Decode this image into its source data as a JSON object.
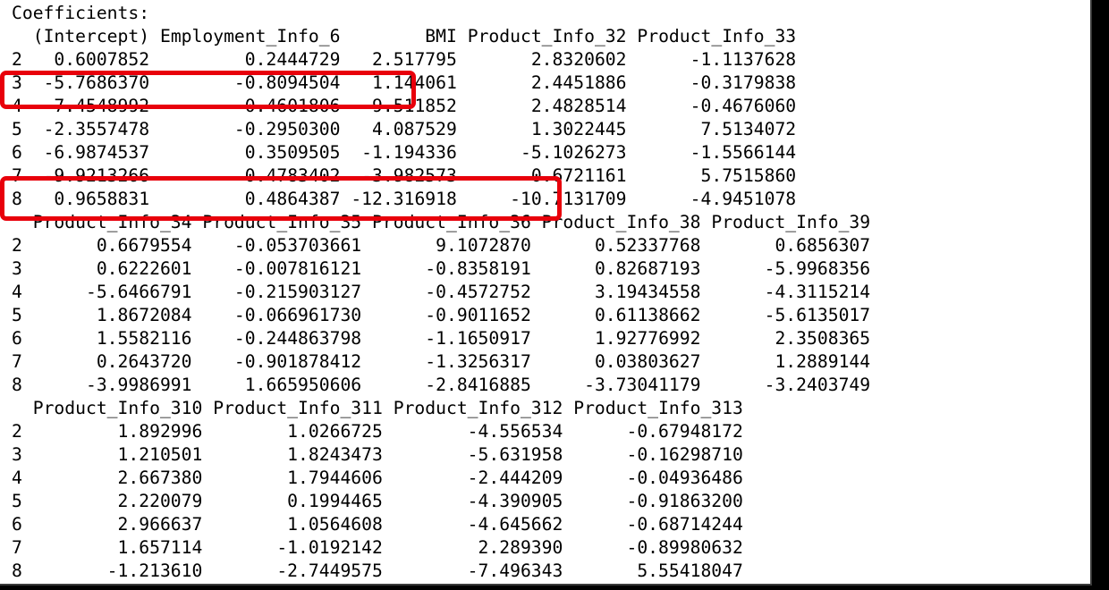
{
  "heading": "Coefficients:",
  "blocks": [
    {
      "header": [
        "(Intercept)",
        "Employment_Info_6",
        "BMI",
        "Product_Info_32",
        "Product_Info_33"
      ],
      "rows": [
        [
          "2",
          "0.6007852",
          "0.2444729",
          "2.517795",
          "2.8320602",
          "-1.1137628"
        ],
        [
          "3",
          "-5.7686370",
          "-0.8094504",
          "1.144061",
          "2.4451886",
          "-0.3179838"
        ],
        [
          "4",
          "-7.4548992",
          "-0.4601806",
          "-9.511852",
          "2.4828514",
          "-0.4676060"
        ],
        [
          "5",
          "-2.3557478",
          "-0.2950300",
          "4.087529",
          "1.3022445",
          "7.5134072"
        ],
        [
          "6",
          "-6.9874537",
          "0.3509505",
          "-1.194336",
          "-5.1026273",
          "-1.5566144"
        ],
        [
          "7",
          "-9.9213266",
          "0.4783402",
          "-3.982573",
          "0.6721161",
          "5.7515860"
        ],
        [
          "8",
          "0.9658831",
          "0.4864387",
          "-12.316918",
          "-10.7131709",
          "-4.9451078"
        ]
      ]
    },
    {
      "header": [
        "Product_Info_34",
        "Product_Info_35",
        "Product_Info_36",
        "Product_Info_38",
        "Product_Info_39"
      ],
      "rows": [
        [
          "2",
          "0.6679554",
          "-0.053703661",
          "9.1072870",
          "0.52337768",
          "0.6856307"
        ],
        [
          "3",
          "0.6222601",
          "-0.007816121",
          "-0.8358191",
          "0.82687193",
          "-5.9968356"
        ],
        [
          "4",
          "-5.6466791",
          "-0.215903127",
          "-0.4572752",
          "3.19434558",
          "-4.3115214"
        ],
        [
          "5",
          "1.8672084",
          "-0.066961730",
          "-0.9011652",
          "0.61138662",
          "-5.6135017"
        ],
        [
          "6",
          "1.5582116",
          "-0.244863798",
          "-1.1650917",
          "1.92776992",
          "2.3508365"
        ],
        [
          "7",
          "0.2643720",
          "-0.901878412",
          "-1.3256317",
          "0.03803627",
          "1.2889144"
        ],
        [
          "8",
          "-3.9986991",
          "1.665950606",
          "-2.8416885",
          "-3.73041179",
          "-3.2403749"
        ]
      ]
    },
    {
      "header": [
        "Product_Info_310",
        "Product_Info_311",
        "Product_Info_312",
        "Product_Info_313"
      ],
      "rows": [
        [
          "2",
          "1.892996",
          "1.0266725",
          "-4.556534",
          "-0.67948172"
        ],
        [
          "3",
          "1.210501",
          "1.8243473",
          "-5.631958",
          "-0.16298710"
        ],
        [
          "4",
          "2.667380",
          "1.7944606",
          "-2.444209",
          "-0.04936486"
        ],
        [
          "5",
          "2.220079",
          "0.1994465",
          "-4.390905",
          "-0.91863200"
        ],
        [
          "6",
          "2.966637",
          "1.0564608",
          "-4.645662",
          "-0.68714244"
        ],
        [
          "7",
          "1.657114",
          "-1.0192142",
          "2.289390",
          "-0.89980632"
        ],
        [
          "8",
          "-1.213610",
          "-2.7449575",
          "-7.496343",
          "5.55418047"
        ]
      ]
    }
  ],
  "highlights": {
    "color": "#e8000b",
    "boxes": [
      "row-3-intercept-employment",
      "row-8-intercept-employment-bmi"
    ]
  }
}
